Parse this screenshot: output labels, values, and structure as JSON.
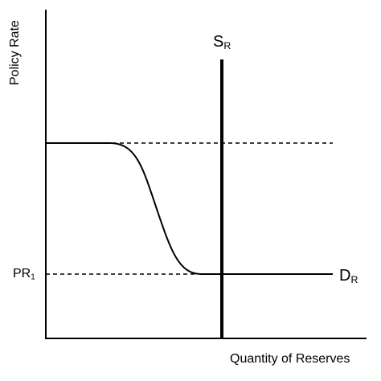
{
  "diagram": {
    "y_axis_label": "Policy Rate",
    "x_axis_label": "Quantity of Reserves",
    "supply_curve": {
      "name": "S",
      "subscript": "R"
    },
    "demand_curve": {
      "name": "D",
      "subscript": "R"
    },
    "policy_rate_marker": {
      "name": "PR",
      "subscript": "1"
    },
    "colors": {
      "line": "#000000",
      "background": "#ffffff"
    }
  }
}
